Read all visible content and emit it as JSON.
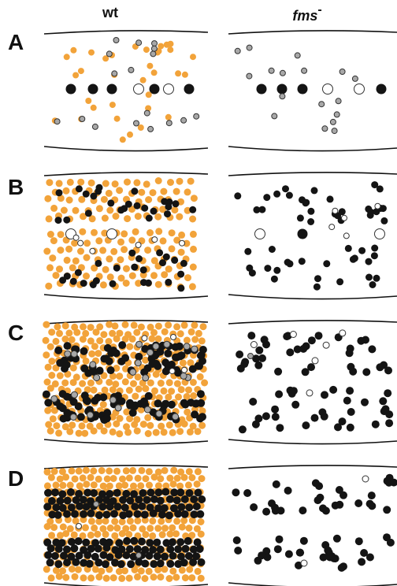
{
  "headers": {
    "wt": "wt",
    "fms": "fms",
    "fms_sup": "-"
  },
  "rows": [
    {
      "label": "A",
      "wt_density": "sparse",
      "fms_density": "sparse"
    },
    {
      "label": "B",
      "wt_density": "medium",
      "fms_density": "sparse"
    },
    {
      "label": "C",
      "wt_density": "dense",
      "fms_density": "medium"
    },
    {
      "label": "D",
      "wt_density": "very-dense",
      "fms_density": "medium"
    }
  ],
  "colors": {
    "xanthophore": "#f2a33a",
    "melanophore": "#141414",
    "iridophore": "#a8a8a8",
    "unpigmented": "#ffffff",
    "outline": "#333333"
  }
}
